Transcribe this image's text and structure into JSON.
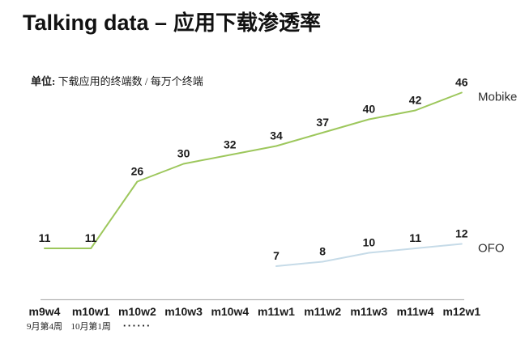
{
  "title": {
    "en": "Talking data –",
    "zh": "应用下载渗透率"
  },
  "unit": {
    "bold": "单位:",
    "text": "下载应用的终端数 / 每万个终端"
  },
  "chart_data": {
    "type": "line",
    "title": "Talking data – 应用下载渗透率",
    "unit_label": "单位: 下载应用的终端数 / 每万个终端",
    "categories": [
      "m9w4",
      "m10w1",
      "m10w2",
      "m10w3",
      "m10w4",
      "m11w1",
      "m11w2",
      "m11w3",
      "m11w4",
      "m12w1"
    ],
    "x_sub_labels": [
      {
        "index": 0,
        "text": "9月第4周"
      },
      {
        "index": 1,
        "text": "10月第1周"
      },
      {
        "index": 2,
        "text": "······",
        "bold": true
      }
    ],
    "series": [
      {
        "name": "Mobike",
        "color": "#9dc75c",
        "start_index": 0,
        "values": [
          11,
          11,
          26,
          30,
          32,
          34,
          37,
          40,
          42,
          46
        ]
      },
      {
        "name": "OFO",
        "color": "#c6dbe8",
        "start_index": 5,
        "values": [
          7,
          8,
          10,
          11,
          12
        ]
      }
    ],
    "ylim": [
      0,
      55
    ],
    "grid": false,
    "legend_position": "right-of-line-end",
    "label_color": "#1b1b1b",
    "axis_line_color": "#b3b3b3"
  }
}
